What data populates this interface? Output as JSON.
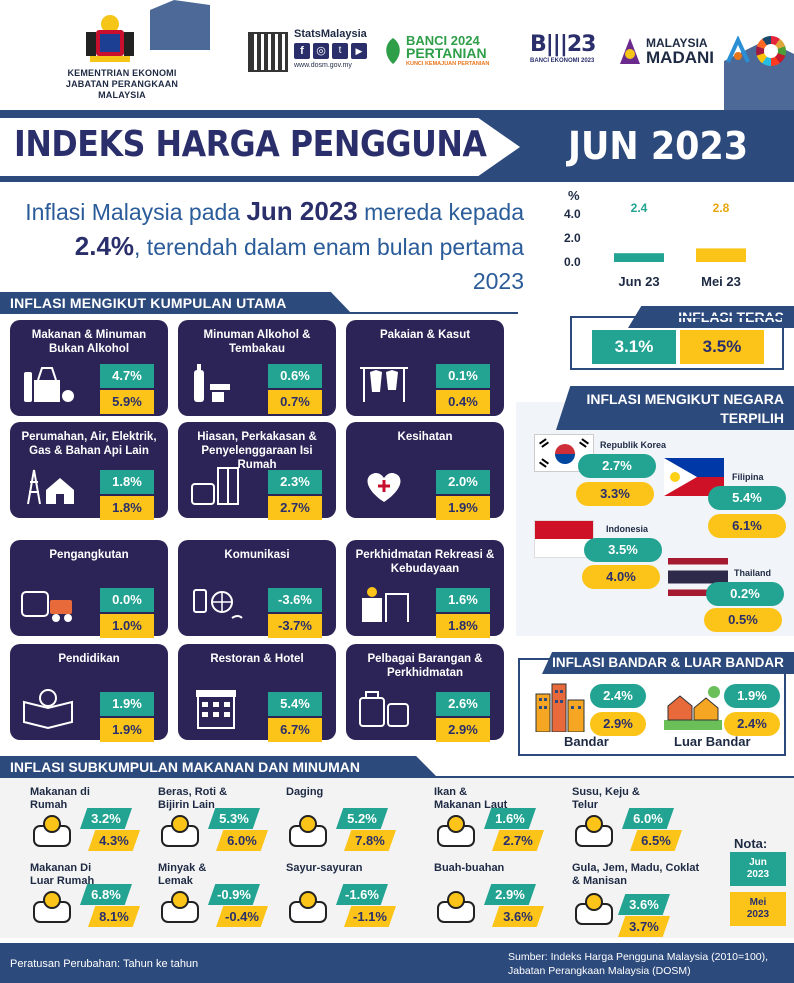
{
  "header": {
    "ministry_line1": "KEMENTRIAN EKONOMI",
    "ministry_line2": "JABATAN PERANGKAAN MALAYSIA",
    "stats_brand": "StatsMalaysia",
    "stats_url": "www.dosm.gov.my",
    "banci_line1": "BANCI 2024",
    "banci_line2": "PERTANIAN",
    "banci_tagline": "KUNCI KEMAJUAN PERTANIAN",
    "banci_ekonomi": "BANCI EKONOMI 2023",
    "madani_line1": "MALAYSIA",
    "madani_line2": "MADANI"
  },
  "title": {
    "main": "INDEKS HARGA PENGGUNA",
    "period": "JUN 2023"
  },
  "headline": {
    "part1": "Inflasi Malaysia pada ",
    "bold1": "Jun 2023",
    "part2": " mereda kepada ",
    "bold2": "2.4%",
    "part3": ", terendah dalam enam bulan pertama 2023"
  },
  "chart_data": {
    "type": "bar",
    "categories": [
      "Jun 23",
      "Mei 23"
    ],
    "values": [
      2.4,
      2.8
    ],
    "colors": [
      "#23a392",
      "#fcc418"
    ],
    "ylabel": "%",
    "yticks": [
      "4.0",
      "2.0",
      "0.0"
    ],
    "ylim": [
      0,
      4.0
    ]
  },
  "main_groups": {
    "heading": "INFLASI MENGIKUT KUMPULAN UTAMA",
    "items": [
      {
        "name": "Makanan & Minuman Bukan Alkohol",
        "jun": "4.7%",
        "mei": "5.9%",
        "icon": "groceries-icon"
      },
      {
        "name": "Minuman Alkohol & Tembakau",
        "jun": "0.6%",
        "mei": "0.7%",
        "icon": "alcohol-tobacco-icon"
      },
      {
        "name": "Pakaian & Kasut",
        "jun": "0.1%",
        "mei": "0.4%",
        "icon": "clothing-rack-icon"
      },
      {
        "name": "Perumahan, Air, Elektrik, Gas & Bahan Api Lain",
        "jun": "1.8%",
        "mei": "1.8%",
        "icon": "house-pylon-icon"
      },
      {
        "name": "Hiasan, Perkakasan & Penyelenggaraan Isi Rumah",
        "jun": "2.3%",
        "mei": "2.7%",
        "icon": "furniture-icon"
      },
      {
        "name": "Kesihatan",
        "jun": "2.0%",
        "mei": "1.9%",
        "icon": "health-heart-icon"
      },
      {
        "name": "Pengangkutan",
        "jun": "0.0%",
        "mei": "1.0%",
        "icon": "transport-icon"
      },
      {
        "name": "Komunikasi",
        "jun": "-3.6%",
        "mei": "-3.7%",
        "icon": "communication-icon"
      },
      {
        "name": "Perkhidmatan Rekreasi & Kebudayaan",
        "jun": "1.6%",
        "mei": "1.8%",
        "icon": "recreation-icon"
      },
      {
        "name": "Pendidikan",
        "jun": "1.9%",
        "mei": "1.9%",
        "icon": "education-icon"
      },
      {
        "name": "Restoran & Hotel",
        "jun": "5.4%",
        "mei": "6.7%",
        "icon": "hotel-icon"
      },
      {
        "name": "Pelbagai Barangan & Perkhidmatan",
        "jun": "2.6%",
        "mei": "2.9%",
        "icon": "misc-goods-icon"
      }
    ]
  },
  "core": {
    "heading": "INFLASI TERAS",
    "jun": "3.1%",
    "mei": "3.5%"
  },
  "countries": {
    "heading": "INFLASI MENGIKUT NEGARA TERPILIH",
    "items": [
      {
        "name": "Republik Korea",
        "jun": "2.7%",
        "mei": "3.3%"
      },
      {
        "name": "Filipina",
        "jun": "5.4%",
        "mei": "6.1%"
      },
      {
        "name": "Indonesia",
        "jun": "3.5%",
        "mei": "4.0%"
      },
      {
        "name": "Thailand",
        "jun": "0.2%",
        "mei": "0.5%"
      }
    ]
  },
  "urban": {
    "heading": "INFLASI BANDAR & LUAR BANDAR",
    "bandar_label": "Bandar",
    "bandar_jun": "2.4%",
    "bandar_mei": "2.9%",
    "luar_label": "Luar Bandar",
    "luar_jun": "1.9%",
    "luar_mei": "2.4%"
  },
  "subgroups": {
    "heading": "INFLASI SUBKUMPULAN MAKANAN DAN MINUMAN",
    "items": [
      {
        "name": "Makanan di Rumah",
        "jun": "3.2%",
        "mei": "4.3%"
      },
      {
        "name": "Beras, Roti & Bijirin Lain",
        "jun": "5.3%",
        "mei": "6.0%"
      },
      {
        "name": "Daging",
        "jun": "5.2%",
        "mei": "7.8%"
      },
      {
        "name": "Ikan & Makanan Laut",
        "jun": "1.6%",
        "mei": "2.7%"
      },
      {
        "name": "Susu, Keju & Telur",
        "jun": "6.0%",
        "mei": "6.5%"
      },
      {
        "name": "Makanan Di Luar Rumah",
        "jun": "6.8%",
        "mei": "8.1%"
      },
      {
        "name": "Minyak & Lemak",
        "jun": "-0.9%",
        "mei": "-0.4%"
      },
      {
        "name": "Sayur-sayuran",
        "jun": "-1.6%",
        "mei": "-1.1%"
      },
      {
        "name": "Buah-buahan",
        "jun": "2.9%",
        "mei": "3.6%"
      },
      {
        "name": "Gula, Jem, Madu, Coklat & Manisan",
        "jun": "3.6%",
        "mei": "3.7%"
      }
    ]
  },
  "note": {
    "label": "Nota:",
    "jun": "Jun 2023",
    "mei": "Mei 2023"
  },
  "footer": {
    "left": "Peratusan Perubahan: Tahun ke tahun",
    "source1": "Sumber: Indeks Harga Pengguna Malaysia (2010=100),",
    "source2": "Jabatan Perangkaan Malaysia (DOSM)"
  }
}
